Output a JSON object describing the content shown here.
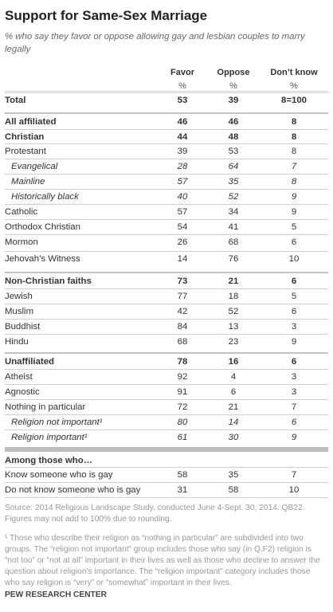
{
  "title": "Support for Same-Sex Marriage",
  "subtitle": "% who say they favor or oppose allowing gay and lesbian couples to marry legally",
  "columns": [
    {
      "label": "Favor",
      "unit": "%"
    },
    {
      "label": "Oppose",
      "unit": "%"
    },
    {
      "label": "Don’t know",
      "unit": "%"
    }
  ],
  "rows": [
    {
      "label": "Total",
      "favor": "53",
      "oppose": "39",
      "dk": "8=100"
    },
    {
      "label": "All affiliated",
      "favor": "46",
      "oppose": "46",
      "dk": "8"
    },
    {
      "label": "Christian",
      "favor": "44",
      "oppose": "48",
      "dk": "8"
    },
    {
      "label": "Protestant",
      "favor": "39",
      "oppose": "53",
      "dk": "8"
    },
    {
      "label": "Evangelical",
      "favor": "28",
      "oppose": "64",
      "dk": "7"
    },
    {
      "label": "Mainline",
      "favor": "57",
      "oppose": "35",
      "dk": "8"
    },
    {
      "label": "Historically black",
      "favor": "40",
      "oppose": "52",
      "dk": "9"
    },
    {
      "label": "Catholic",
      "favor": "57",
      "oppose": "34",
      "dk": "9"
    },
    {
      "label": "Orthodox Christian",
      "favor": "54",
      "oppose": "41",
      "dk": "5"
    },
    {
      "label": "Mormon",
      "favor": "26",
      "oppose": "68",
      "dk": "6"
    },
    {
      "label": "Jehovah’s Witness",
      "favor": "14",
      "oppose": "76",
      "dk": "10"
    },
    {
      "label": "Non-Christian faiths",
      "favor": "73",
      "oppose": "21",
      "dk": "6"
    },
    {
      "label": "Jewish",
      "favor": "77",
      "oppose": "18",
      "dk": "5"
    },
    {
      "label": "Muslim",
      "favor": "42",
      "oppose": "52",
      "dk": "6"
    },
    {
      "label": "Buddhist",
      "favor": "84",
      "oppose": "13",
      "dk": "3"
    },
    {
      "label": "Hindu",
      "favor": "68",
      "oppose": "23",
      "dk": "9"
    },
    {
      "label": "Unaffiliated",
      "favor": "78",
      "oppose": "16",
      "dk": "6"
    },
    {
      "label": "Atheist",
      "favor": "92",
      "oppose": "4",
      "dk": "3"
    },
    {
      "label": "Agnostic",
      "favor": "91",
      "oppose": "6",
      "dk": "3"
    },
    {
      "label": "Nothing in particular",
      "favor": "72",
      "oppose": "21",
      "dk": "7"
    },
    {
      "label": "Religion not important¹",
      "favor": "80",
      "oppose": "14",
      "dk": "6"
    },
    {
      "label": "Religion important¹",
      "favor": "61",
      "oppose": "30",
      "dk": "9"
    }
  ],
  "among": {
    "label": "Among those who…",
    "rows": [
      {
        "label": "Know someone who is gay",
        "favor": "58",
        "oppose": "35",
        "dk": "7"
      },
      {
        "label": "Do not know someone who is gay",
        "favor": "31",
        "oppose": "58",
        "dk": "10"
      }
    ]
  },
  "source": "Source: 2014 Religious Landscape Study, conducted June 4-Sept. 30, 2014. QB22. Figures may not add to 100% due to rounding.",
  "footnote": "¹ Those who describe their religion as “nothing in particular” are subdivided into two groups. The “religion not important” group includes those who say (in Q.F2) religion is “not too” or “not at all” important in their lives as well as those who decline to answer the question about religion’s importance. The “religion important” category includes those who say religion is “very” or “somewhat” important in their lives.",
  "brand": "PEW RESEARCH CENTER"
}
